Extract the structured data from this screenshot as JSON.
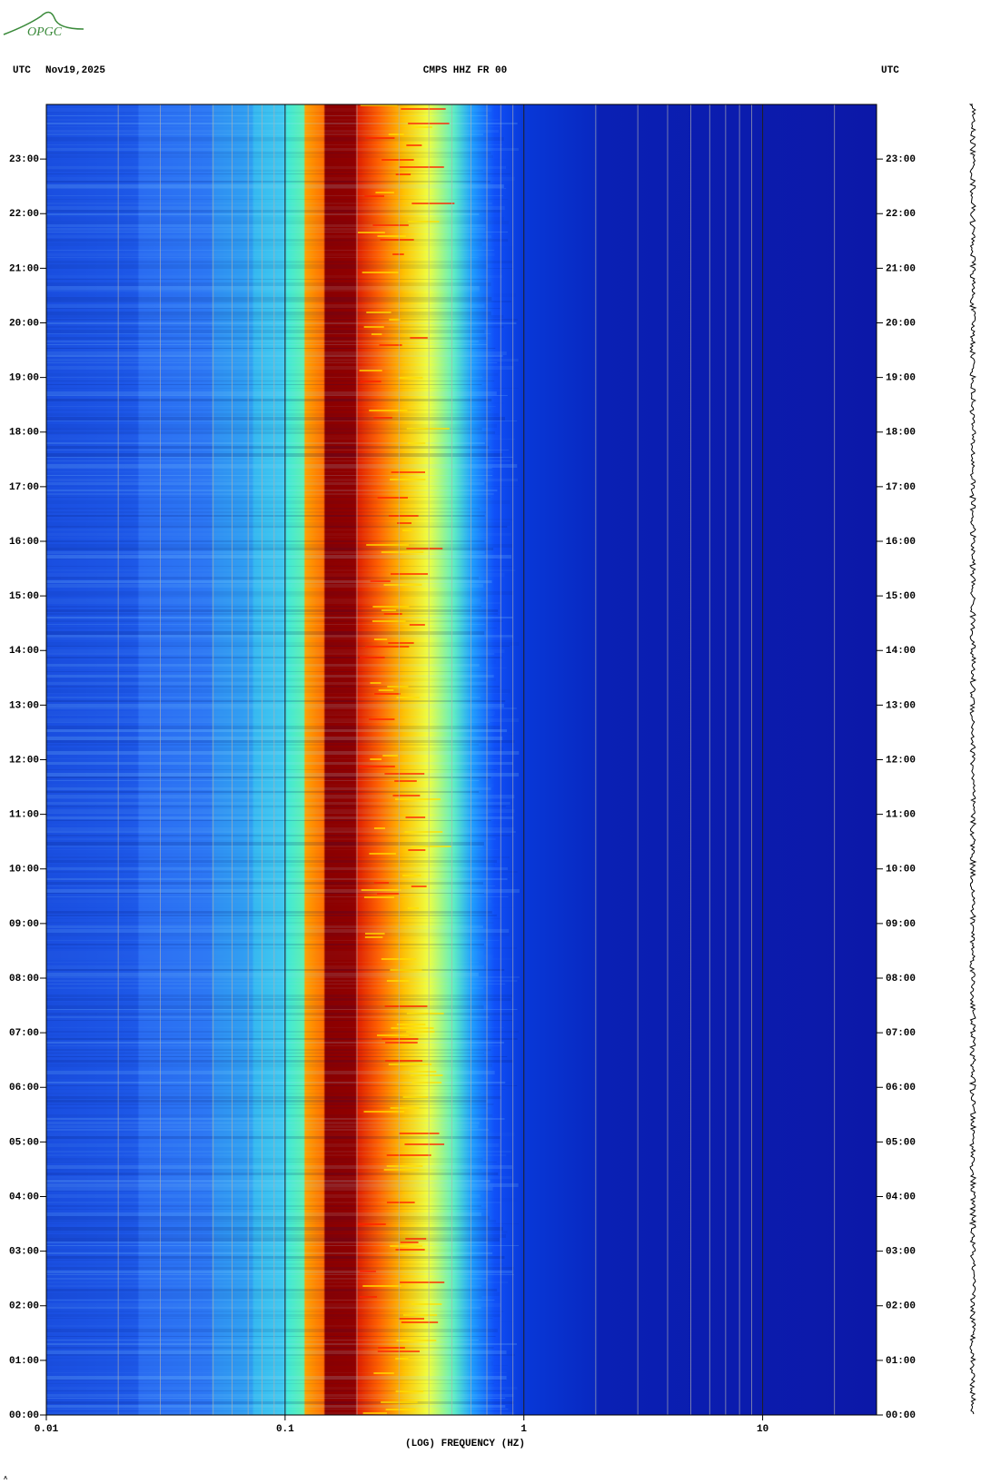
{
  "logo": "OPGC",
  "chart_data": {
    "type": "spectrogram",
    "title": "CMPS HHZ FR 00",
    "header_left": "UTC",
    "date": "Nov19,2025",
    "header_right": "UTC",
    "xlabel": "(LOG) FREQUENCY (HZ)",
    "xscale": "log",
    "xlim": [
      0.01,
      30
    ],
    "xticks": [
      0.01,
      0.1,
      1,
      10
    ],
    "x_minor_ticks": [
      0.02,
      0.03,
      0.04,
      0.05,
      0.06,
      0.07,
      0.08,
      0.09,
      0.2,
      0.3,
      0.4,
      0.5,
      0.6,
      0.7,
      0.8,
      0.9,
      2,
      3,
      4,
      5,
      6,
      7,
      8,
      9,
      20
    ],
    "ylim": [
      0,
      24
    ],
    "yticks": [
      {
        "value": 0,
        "label": "00:00"
      },
      {
        "value": 1,
        "label": "01:00"
      },
      {
        "value": 2,
        "label": "02:00"
      },
      {
        "value": 3,
        "label": "03:00"
      },
      {
        "value": 4,
        "label": "04:00"
      },
      {
        "value": 5,
        "label": "05:00"
      },
      {
        "value": 6,
        "label": "06:00"
      },
      {
        "value": 7,
        "label": "07:00"
      },
      {
        "value": 8,
        "label": "08:00"
      },
      {
        "value": 9,
        "label": "09:00"
      },
      {
        "value": 10,
        "label": "10:00"
      },
      {
        "value": 11,
        "label": "11:00"
      },
      {
        "value": 12,
        "label": "12:00"
      },
      {
        "value": 13,
        "label": "13:00"
      },
      {
        "value": 14,
        "label": "14:00"
      },
      {
        "value": 15,
        "label": "15:00"
      },
      {
        "value": 16,
        "label": "16:00"
      },
      {
        "value": 17,
        "label": "17:00"
      },
      {
        "value": 18,
        "label": "18:00"
      },
      {
        "value": 19,
        "label": "19:00"
      },
      {
        "value": 20,
        "label": "20:00"
      },
      {
        "value": 21,
        "label": "21:00"
      },
      {
        "value": 22,
        "label": "22:00"
      },
      {
        "value": 23,
        "label": "23:00"
      }
    ],
    "grid": true
  }
}
